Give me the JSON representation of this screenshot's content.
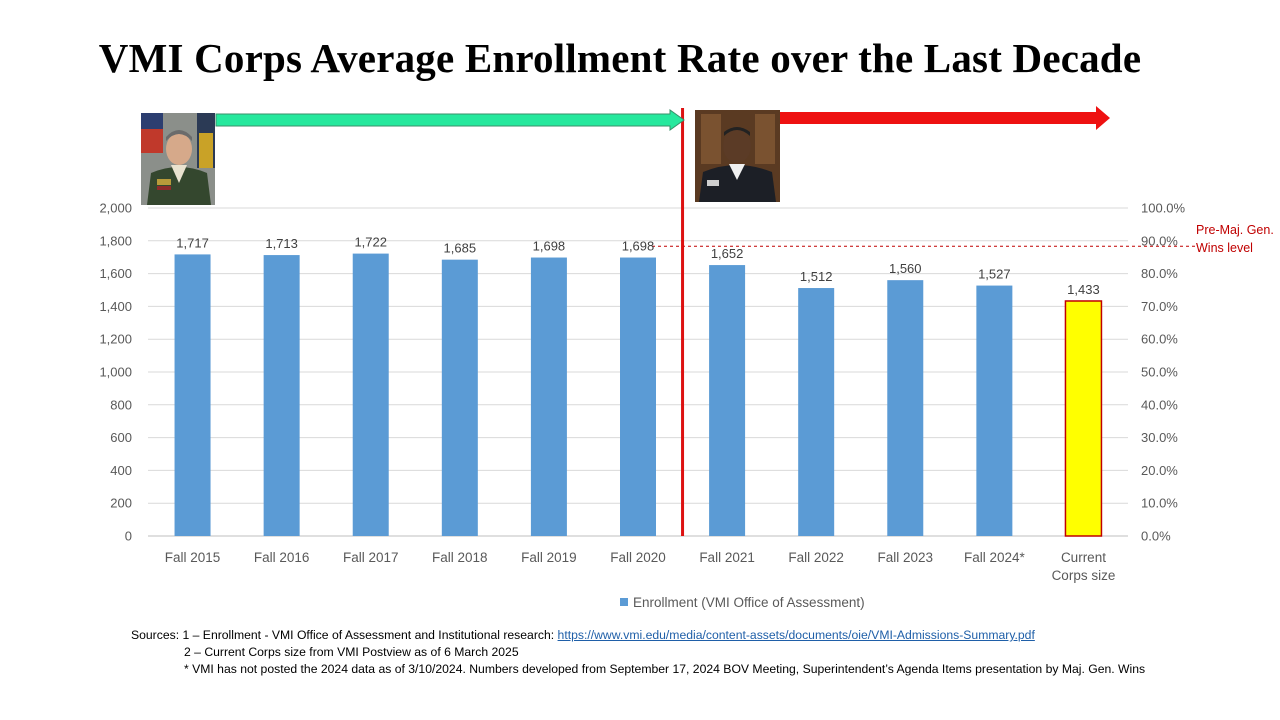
{
  "title": "VMI Corps Average Enrollment Rate over the Last Decade",
  "colors": {
    "bar": "#5b9bd5",
    "highlight_bar": "#ffff00",
    "highlight_border": "#c00000",
    "green_arrow": "#26e89d",
    "red_arrow": "#ee1111",
    "divider": "#dd1111",
    "reference_line": "#c00000"
  },
  "reference_note": "Pre-Maj. Gen. Wins level",
  "sources": {
    "line1_prefix": "Sources: 1 – Enrollment - VMI Office of Assessment and Institutional research: ",
    "line1_link": "https://www.vmi.edu/media/content-assets/documents/oie/VMI-Admissions-Summary.pdf",
    "line2": "2 – Current Corps size from VMI Postview as of 6 March 2025",
    "line3": "* VMI has not posted the 2024 data as of 3/10/2024.  Numbers developed from September 17, 2024 BOV Meeting, Superintendent’s Agenda Items presentation by Maj. Gen. Wins"
  },
  "chart_data": {
    "type": "bar",
    "categories": [
      "Fall 2015",
      "Fall 2016",
      "Fall 2017",
      "Fall 2018",
      "Fall 2019",
      "Fall 2020",
      "Fall 2021",
      "Fall 2022",
      "Fall 2023",
      "Fall 2024*",
      "Current Corps size"
    ],
    "series": [
      {
        "name": "Enrollment (VMI Office of Assessment)",
        "values": [
          1717,
          1713,
          1722,
          1685,
          1698,
          1698,
          1652,
          1512,
          1560,
          1527,
          1433
        ],
        "labels": [
          "1,717",
          "1,713",
          "1,722",
          "1,685",
          "1,698",
          "1,698",
          "1,652",
          "1,512",
          "1,560",
          "1,527",
          "1,433"
        ]
      }
    ],
    "highlight_category": "Current Corps size",
    "ylim": [
      0,
      2000
    ],
    "yticks": [
      "0",
      "200",
      "400",
      "600",
      "800",
      "1,000",
      "1,200",
      "1,400",
      "1,600",
      "1,800",
      "2,000"
    ],
    "y2lim": [
      0,
      100
    ],
    "y2ticks": [
      "0.0%",
      "10.0%",
      "20.0%",
      "30.0%",
      "40.0%",
      "50.0%",
      "60.0%",
      "70.0%",
      "80.0%",
      "90.0%",
      "100.0%"
    ],
    "reference_value": 1767,
    "divider_between": [
      "Fall 2020",
      "Fall 2021"
    ],
    "legend_position": "bottom",
    "grid": true
  }
}
